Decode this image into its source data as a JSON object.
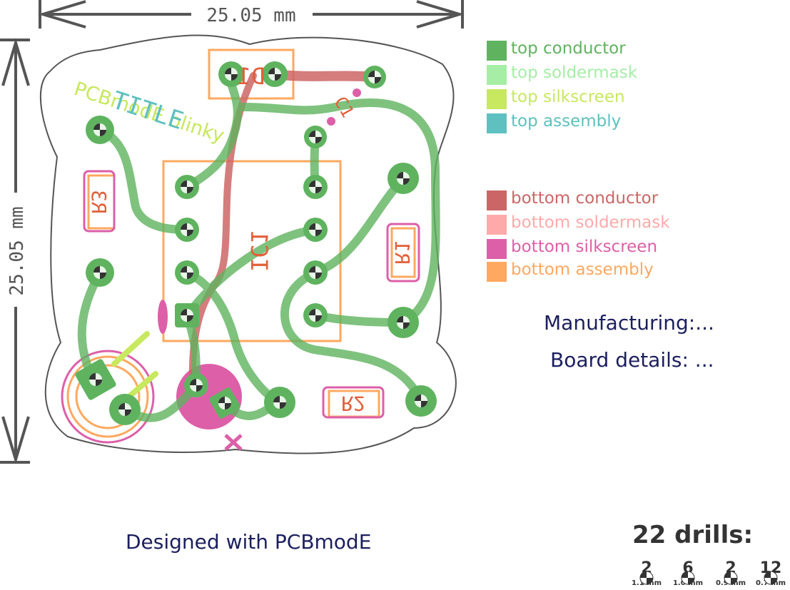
{
  "dimensions": {
    "width_label": "25.05 mm",
    "height_label": "25.05 mm"
  },
  "board_text": {
    "title_silk": "TITLE",
    "name_silk": "PCBmodE blinky",
    "refs": {
      "ic1": "IC1",
      "d1": "D1",
      "r1": "R1",
      "r2": "R2",
      "r3": "R3",
      "c1": "C1"
    }
  },
  "legend": {
    "top": [
      {
        "label": "top conductor",
        "color": "#5fb35f"
      },
      {
        "label": "top soldermask",
        "color": "#a6eda6"
      },
      {
        "label": "top silkscreen",
        "color": "#c7e85f"
      },
      {
        "label": "top assembly",
        "color": "#5fc0c0"
      }
    ],
    "bottom": [
      {
        "label": "bottom conductor",
        "color": "#cc6666"
      },
      {
        "label": "bottom soldermask",
        "color": "#ffaaaa"
      },
      {
        "label": "bottom silkscreen",
        "color": "#dd5fa8"
      },
      {
        "label": "bottom assembly",
        "color": "#ffa860"
      }
    ]
  },
  "info": {
    "manufacturing": "Manufacturing:...",
    "board_details": "Board details: ..."
  },
  "footer": {
    "designed_with": "Designed with PCBmodE"
  },
  "drills": {
    "title": "22 drills:",
    "items": [
      {
        "count": "2",
        "size": "1.1 mm"
      },
      {
        "count": "6",
        "size": "1.0 mm"
      },
      {
        "count": "2",
        "size": "0.9 mm"
      },
      {
        "count": "12",
        "size": "0.7 mm"
      }
    ]
  }
}
